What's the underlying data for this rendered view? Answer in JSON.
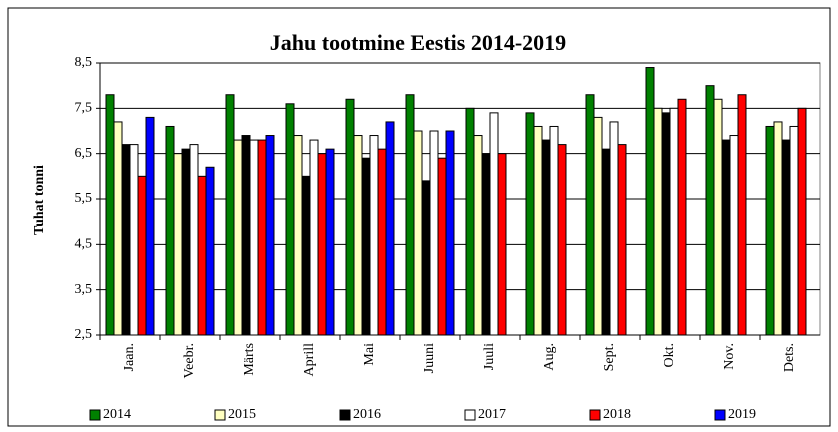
{
  "chart_data": {
    "type": "bar",
    "title": "Jahu tootmine  Eestis 2014-2019",
    "y_label": "Tuhat tonni",
    "categories": [
      "Jaan.",
      "Veebr.",
      "Märts",
      "Aprill",
      "Mai",
      "Juuni",
      "Juuli",
      "Aug.",
      "Sept.",
      "Okt.",
      "Nov.",
      "Dets."
    ],
    "series": [
      {
        "name": "2014",
        "color": "#008000",
        "values": [
          7.8,
          7.1,
          7.8,
          7.6,
          7.7,
          7.8,
          7.5,
          7.4,
          7.8,
          8.4,
          8.0,
          7.1
        ]
      },
      {
        "name": "2015",
        "color": "#ffffc0",
        "values": [
          7.2,
          6.5,
          6.8,
          6.9,
          6.9,
          7.0,
          6.9,
          7.1,
          7.3,
          7.5,
          7.7,
          7.2
        ]
      },
      {
        "name": "2016",
        "color": "#000000",
        "values": [
          6.7,
          6.6,
          6.9,
          6.0,
          6.4,
          5.9,
          6.5,
          6.8,
          6.6,
          7.4,
          6.8,
          6.8
        ]
      },
      {
        "name": "2017",
        "color": "#ffffff",
        "values": [
          6.7,
          6.7,
          6.8,
          6.8,
          6.9,
          7.0,
          7.4,
          7.1,
          7.2,
          7.5,
          6.9,
          7.1
        ]
      },
      {
        "name": "2018",
        "color": "#ff0000",
        "values": [
          6.0,
          6.0,
          6.8,
          6.5,
          6.6,
          6.4,
          6.5,
          6.7,
          6.7,
          7.7,
          7.8,
          7.5
        ]
      },
      {
        "name": "2019",
        "color": "#0000ff",
        "values": [
          7.3,
          6.2,
          6.9,
          6.6,
          7.2,
          7.0,
          null,
          null,
          null,
          null,
          null,
          null
        ]
      }
    ],
    "ylim": [
      2.5,
      8.5
    ],
    "yticks": [
      {
        "value": 2.5,
        "label": "2,5"
      },
      {
        "value": 3.5,
        "label": "3,5"
      },
      {
        "value": 4.5,
        "label": "4,5"
      },
      {
        "value": 5.5,
        "label": "5,5"
      },
      {
        "value": 6.5,
        "label": "6,5"
      },
      {
        "value": 7.5,
        "label": "7,5"
      },
      {
        "value": 8.5,
        "label": "8,5"
      }
    ],
    "grid": true,
    "legend": "bottom"
  }
}
